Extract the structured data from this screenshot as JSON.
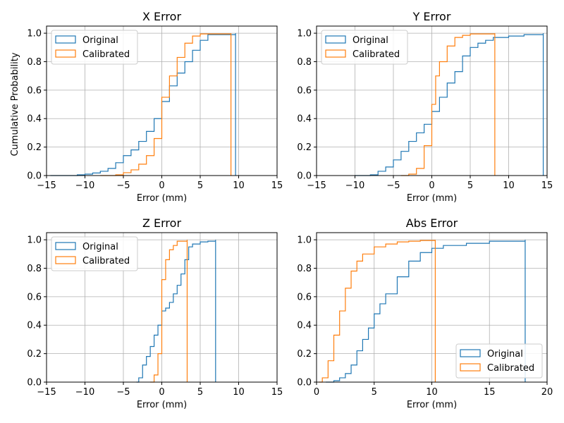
{
  "figure": {
    "ylabel": "Cumulative Probability"
  },
  "chart_data": [
    {
      "type": "line",
      "title": "X Error",
      "xlabel": "Error (mm)",
      "xlim": [
        -15,
        15
      ],
      "ylim": [
        0,
        1.05
      ],
      "xticks": [
        -15,
        -10,
        -5,
        0,
        5,
        10,
        15
      ],
      "yticks": [
        0.0,
        0.2,
        0.4,
        0.6,
        0.8,
        1.0
      ],
      "xtick_labels": [
        "−15",
        "−10",
        "−5",
        "0",
        "5",
        "10",
        "15"
      ],
      "ytick_labels": [
        "0.0",
        "0.2",
        "0.4",
        "0.6",
        "0.8",
        "1.0"
      ],
      "grid": true,
      "legend": "upper left",
      "series": [
        {
          "name": "Original",
          "color": "#1f77b4",
          "points": [
            [
              -14.5,
              0.0
            ],
            [
              -11,
              0.005
            ],
            [
              -10,
              0.01
            ],
            [
              -9,
              0.018
            ],
            [
              -8,
              0.03
            ],
            [
              -7,
              0.05
            ],
            [
              -6,
              0.09
            ],
            [
              -5,
              0.14
            ],
            [
              -4,
              0.18
            ],
            [
              -3,
              0.24
            ],
            [
              -2,
              0.31
            ],
            [
              -1,
              0.4
            ],
            [
              0,
              0.52
            ],
            [
              1,
              0.63
            ],
            [
              2,
              0.72
            ],
            [
              3,
              0.8
            ],
            [
              4,
              0.88
            ],
            [
              5,
              0.95
            ],
            [
              6,
              0.99
            ],
            [
              9.6,
              1.0
            ]
          ]
        },
        {
          "name": "Calibrated",
          "color": "#ff7f0e",
          "points": [
            [
              -8,
              0.0
            ],
            [
              -6,
              0.005
            ],
            [
              -5,
              0.02
            ],
            [
              -4,
              0.04
            ],
            [
              -3,
              0.08
            ],
            [
              -2,
              0.14
            ],
            [
              -1,
              0.26
            ],
            [
              0,
              0.55
            ],
            [
              1,
              0.7
            ],
            [
              2,
              0.83
            ],
            [
              3,
              0.93
            ],
            [
              4,
              0.98
            ],
            [
              5,
              0.995
            ],
            [
              9,
              1.0
            ]
          ]
        }
      ]
    },
    {
      "type": "line",
      "title": "Y Error",
      "xlabel": "Error (mm)",
      "xlim": [
        -15,
        15
      ],
      "ylim": [
        0,
        1.05
      ],
      "xticks": [
        -15,
        -10,
        -5,
        0,
        5,
        10,
        15
      ],
      "yticks": [
        0.0,
        0.2,
        0.4,
        0.6,
        0.8,
        1.0
      ],
      "xtick_labels": [
        "−15",
        "−10",
        "−5",
        "0",
        "5",
        "10",
        "15"
      ],
      "ytick_labels": [
        "0.0",
        "0.2",
        "0.4",
        "0.6",
        "0.8",
        "1.0"
      ],
      "grid": true,
      "legend": "upper left",
      "series": [
        {
          "name": "Original",
          "color": "#1f77b4",
          "points": [
            [
              -10,
              0.0
            ],
            [
              -8,
              0.005
            ],
            [
              -7,
              0.03
            ],
            [
              -6,
              0.06
            ],
            [
              -5,
              0.11
            ],
            [
              -4,
              0.17
            ],
            [
              -3,
              0.24
            ],
            [
              -2,
              0.3
            ],
            [
              -1,
              0.36
            ],
            [
              0,
              0.45
            ],
            [
              1,
              0.55
            ],
            [
              2,
              0.65
            ],
            [
              3,
              0.73
            ],
            [
              4,
              0.84
            ],
            [
              5,
              0.9
            ],
            [
              6,
              0.93
            ],
            [
              7,
              0.95
            ],
            [
              8,
              0.97
            ],
            [
              10,
              0.98
            ],
            [
              12,
              0.99
            ],
            [
              14.5,
              1.0
            ]
          ]
        },
        {
          "name": "Calibrated",
          "color": "#ff7f0e",
          "points": [
            [
              -4,
              0.0
            ],
            [
              -3,
              0.01
            ],
            [
              -2,
              0.05
            ],
            [
              -1,
              0.21
            ],
            [
              0,
              0.5
            ],
            [
              0.5,
              0.7
            ],
            [
              1,
              0.8
            ],
            [
              2,
              0.91
            ],
            [
              3,
              0.97
            ],
            [
              4,
              0.985
            ],
            [
              5,
              0.995
            ],
            [
              8.2,
              1.0
            ]
          ]
        }
      ]
    },
    {
      "type": "line",
      "title": "Z Error",
      "xlabel": "Error (mm)",
      "xlim": [
        -15,
        15
      ],
      "ylim": [
        0,
        1.05
      ],
      "xticks": [
        -15,
        -10,
        -5,
        0,
        5,
        10,
        15
      ],
      "yticks": [
        0.0,
        0.2,
        0.4,
        0.6,
        0.8,
        1.0
      ],
      "xtick_labels": [
        "−15",
        "−10",
        "−5",
        "0",
        "5",
        "10",
        "15"
      ],
      "ytick_labels": [
        "0.0",
        "0.2",
        "0.4",
        "0.6",
        "0.8",
        "1.0"
      ],
      "grid": true,
      "legend": "upper left",
      "series": [
        {
          "name": "Original",
          "color": "#1f77b4",
          "points": [
            [
              -3.3,
              0.0
            ],
            [
              -3,
              0.03
            ],
            [
              -2.5,
              0.12
            ],
            [
              -2,
              0.18
            ],
            [
              -1.5,
              0.25
            ],
            [
              -1,
              0.33
            ],
            [
              -0.5,
              0.4
            ],
            [
              0,
              0.5
            ],
            [
              0.5,
              0.52
            ],
            [
              1,
              0.56
            ],
            [
              1.5,
              0.62
            ],
            [
              2,
              0.68
            ],
            [
              2.5,
              0.76
            ],
            [
              3,
              0.86
            ],
            [
              3.5,
              0.95
            ],
            [
              4,
              0.97
            ],
            [
              5,
              0.985
            ],
            [
              6,
              0.99
            ],
            [
              7,
              1.0
            ]
          ]
        },
        {
          "name": "Calibrated",
          "color": "#ff7f0e",
          "points": [
            [
              -1.5,
              0.0
            ],
            [
              -1,
              0.05
            ],
            [
              -0.5,
              0.2
            ],
            [
              0,
              0.72
            ],
            [
              0.5,
              0.86
            ],
            [
              1,
              0.93
            ],
            [
              1.5,
              0.96
            ],
            [
              2,
              0.99
            ],
            [
              3.3,
              1.0
            ]
          ]
        }
      ]
    },
    {
      "type": "line",
      "title": "Abs Error",
      "xlabel": "Error (mm)",
      "xlim": [
        0,
        20
      ],
      "ylim": [
        0,
        1.05
      ],
      "xticks": [
        0,
        5,
        10,
        15,
        20
      ],
      "yticks": [
        0.0,
        0.2,
        0.4,
        0.6,
        0.8,
        1.0
      ],
      "xtick_labels": [
        "0",
        "5",
        "10",
        "15",
        "20"
      ],
      "ytick_labels": [
        "0.0",
        "0.2",
        "0.4",
        "0.6",
        "0.8",
        "1.0"
      ],
      "grid": true,
      "legend": "lower right",
      "series": [
        {
          "name": "Original",
          "color": "#1f77b4",
          "points": [
            [
              0.8,
              0.0
            ],
            [
              1.5,
              0.01
            ],
            [
              2,
              0.03
            ],
            [
              2.5,
              0.06
            ],
            [
              3,
              0.12
            ],
            [
              3.5,
              0.22
            ],
            [
              4,
              0.3
            ],
            [
              4.5,
              0.38
            ],
            [
              5,
              0.48
            ],
            [
              5.5,
              0.55
            ],
            [
              6,
              0.62
            ],
            [
              7,
              0.74
            ],
            [
              8,
              0.85
            ],
            [
              9,
              0.91
            ],
            [
              10,
              0.94
            ],
            [
              11,
              0.96
            ],
            [
              13,
              0.975
            ],
            [
              15,
              0.99
            ],
            [
              18.1,
              1.0
            ]
          ]
        },
        {
          "name": "Calibrated",
          "color": "#ff7f0e",
          "points": [
            [
              0.2,
              0.0
            ],
            [
              0.5,
              0.03
            ],
            [
              1,
              0.15
            ],
            [
              1.5,
              0.33
            ],
            [
              2,
              0.5
            ],
            [
              2.5,
              0.66
            ],
            [
              3,
              0.78
            ],
            [
              3.5,
              0.85
            ],
            [
              4,
              0.9
            ],
            [
              5,
              0.95
            ],
            [
              6,
              0.97
            ],
            [
              7,
              0.985
            ],
            [
              8,
              0.99
            ],
            [
              9,
              0.995
            ],
            [
              10.3,
              1.0
            ]
          ]
        }
      ]
    }
  ]
}
